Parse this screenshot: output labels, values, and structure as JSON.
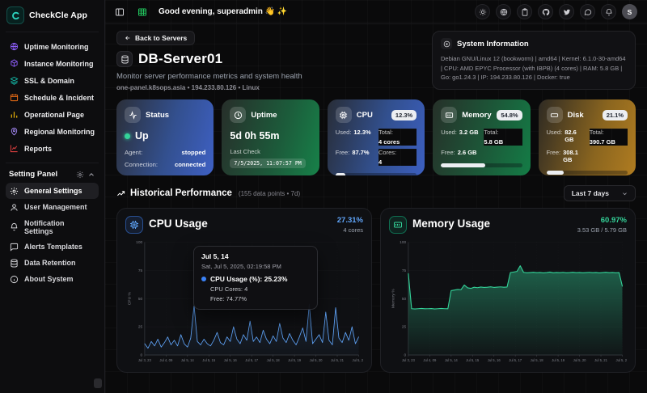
{
  "app": {
    "name": "CheckCle App",
    "avatar_letter": "S"
  },
  "header": {
    "greeting": "Good evening, superadmin 👋 ✨"
  },
  "sidebar": {
    "items": [
      {
        "label": "Uptime Monitoring",
        "color": "#8b5cf6"
      },
      {
        "label": "Instance Monitoring",
        "color": "#8b5cf6"
      },
      {
        "label": "SSL & Domain",
        "color": "#14b8a6"
      },
      {
        "label": "Schedule & Incident",
        "color": "#f97316"
      },
      {
        "label": "Operational Page",
        "color": "#eab308"
      },
      {
        "label": "Regional Monitoring",
        "color": "#a78bfa"
      },
      {
        "label": "Reports",
        "color": "#ef4444"
      }
    ],
    "settings_header": "Setting Panel",
    "settings_items": [
      {
        "label": "General Settings"
      },
      {
        "label": "User Management"
      },
      {
        "label": "Notification Settings"
      },
      {
        "label": "Alerts Templates"
      },
      {
        "label": "Data Retention"
      },
      {
        "label": "About System"
      }
    ]
  },
  "page": {
    "back_button": "Back to Servers",
    "title": "DB-Server01",
    "subtitle": "Monitor server performance metrics and system health",
    "meta": "one-panel.k8sops.asia • 194.233.80.126 • Linux",
    "system_info": {
      "title": "System Information",
      "body": "Debian GNU/Linux 12 (bookworm) | amd64 | Kernel: 6.1.0-30-amd64 | CPU: AMD EPYC Processor (with IBPB) (4 cores) | RAM: 5.8 GB | Go: go1.24.3 | IP: 194.233.80.126 | Docker: true"
    }
  },
  "cards": {
    "status": {
      "title": "Status",
      "value": "Up",
      "status_color": "#34d399",
      "rows": [
        [
          "Agent:",
          "stopped"
        ],
        [
          "Connection:",
          "connected"
        ]
      ]
    },
    "uptime": {
      "title": "Uptime",
      "value": "5d 0h 55m",
      "last_check_label": "Last Check",
      "last_check": "7/5/2025, 11:07:57 PM"
    },
    "cpu": {
      "title": "CPU",
      "badge": "12.3%",
      "progress": 12.3,
      "rows": [
        [
          "Used:",
          "12.3%"
        ],
        [
          "Total:",
          "4 cores"
        ],
        [
          "Free:",
          "87.7%"
        ],
        [
          "Cores:",
          "4"
        ]
      ]
    },
    "memory": {
      "title": "Memory",
      "badge": "54.8%",
      "progress": 54.8,
      "rows": [
        [
          "Used:",
          "3.2 GB"
        ],
        [
          "Total:",
          "5.8 GB"
        ],
        [
          "Free:",
          "2.6 GB"
        ]
      ]
    },
    "disk": {
      "title": "Disk",
      "badge": "21.1%",
      "progress": 21.1,
      "rows": [
        [
          "Used:",
          "82.6 GB"
        ],
        [
          "Total:",
          "390.7 GB"
        ],
        [
          "Free:",
          "308.1 GB"
        ]
      ]
    }
  },
  "history": {
    "title": "Historical Performance",
    "meta": "(155 data points • 7d)",
    "range_select": "Last 7 days"
  },
  "chart_data": [
    {
      "type": "line",
      "title": "CPU Usage",
      "current": "27.31%",
      "current_color": "#60a5fa",
      "subvalue": "4 cores",
      "ylabel": "CPU %",
      "ylim": [
        0,
        100
      ],
      "yticks": [
        0,
        25,
        50,
        75,
        100
      ],
      "x_labels": [
        "Jul 3, 23",
        "Jul 4, 09",
        "Jul 5, 14",
        "Jul 5, 15",
        "Jul 5, 16",
        "Jul 5, 17",
        "Jul 5, 18",
        "Jul 5, 19",
        "Jul 5, 20",
        "Jul 5, 21",
        "Jul 5, 23"
      ],
      "legend_position": "none",
      "grid": true,
      "series": [
        {
          "name": "CPU Usage (%)",
          "color": "#60a5fa",
          "values": [
            10,
            6,
            12,
            8,
            14,
            7,
            11,
            16,
            9,
            13,
            8,
            18,
            10,
            7,
            15,
            44,
            12,
            9,
            14,
            10,
            8,
            13,
            20,
            11,
            9,
            16,
            12,
            25,
            14,
            10,
            18,
            13,
            30,
            12,
            16,
            11,
            22,
            14,
            10,
            17,
            12,
            28,
            15,
            11,
            19,
            13,
            9,
            16,
            24,
            12,
            45,
            10,
            14,
            18,
            11,
            38,
            13,
            9,
            42,
            15,
            11,
            20,
            13,
            25,
            10,
            16
          ]
        }
      ],
      "tooltip": {
        "title": "Jul 5, 14",
        "time": "Sat, Jul 5, 2025, 02:19:58 PM",
        "main": "CPU Usage (%): 25.23%",
        "lines": [
          "CPU Cores: 4",
          "Free: 74.77%"
        ]
      }
    },
    {
      "type": "area",
      "title": "Memory Usage",
      "current": "60.97%",
      "current_color": "#34d399",
      "subvalue": "3.53 GB / 5.79 GB",
      "ylabel": "Memory %",
      "ylim": [
        0,
        100
      ],
      "yticks": [
        0,
        25,
        50,
        75,
        100
      ],
      "x_labels": [
        "Jul 3, 23",
        "Jul 4, 09",
        "Jul 5, 14",
        "Jul 5, 15",
        "Jul 5, 16",
        "Jul 5, 17",
        "Jul 5, 18",
        "Jul 5, 19",
        "Jul 5, 20",
        "Jul 5, 21",
        "Jul 5, 23"
      ],
      "legend_position": "none",
      "grid": true,
      "series": [
        {
          "name": "Memory Usage (%)",
          "color": "#34d399",
          "values": [
            72,
            41,
            40.8,
            41,
            41.2,
            40.9,
            41,
            41.1,
            40.8,
            41,
            41.2,
            41,
            40.9,
            57,
            57.5,
            58,
            57.8,
            62,
            59.5,
            59,
            60,
            59.6,
            60.2,
            59.8,
            60,
            60.4,
            59.9,
            60.1,
            60.3,
            60,
            60.2,
            73,
            73.5,
            74,
            79,
            73.2,
            72.8,
            73,
            73.3,
            72.9,
            73.1,
            72.7,
            73,
            73.4,
            72.8,
            73.1,
            72.9,
            73.2,
            72.8,
            73,
            73.3,
            72.9,
            73.1,
            72.8,
            73,
            73.2,
            72.9,
            73.1,
            72.7,
            73,
            73.3,
            72.9,
            73.1,
            72.8,
            73,
            61
          ]
        }
      ]
    }
  ]
}
